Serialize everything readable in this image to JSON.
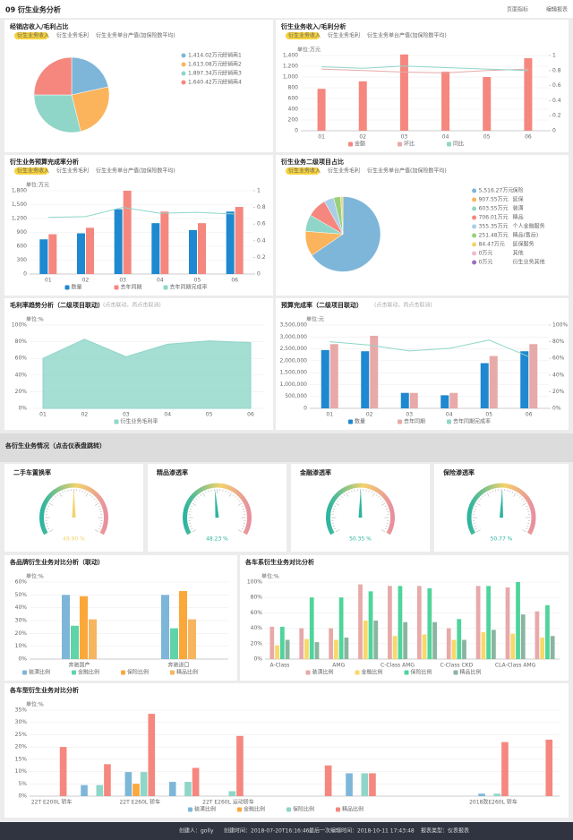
{
  "header": {
    "title": "09 衍生业务分析",
    "actions": [
      "页面指标",
      "编辑报表"
    ]
  },
  "section_title": "各衍生业务情况（点击仪表盘跳转）",
  "footer": [
    "创建人：golly",
    "创建时间：2018-07-20T16:16:46",
    "最后一次编辑时间：2018-10-11 17:43:48",
    "报表类型：仪表报表"
  ],
  "chart_data": [
    {
      "type": "pie",
      "title": "经销店收入/毛利占比",
      "tabs": [
        "衍生业务收入",
        "衍生业务毛利",
        "衍生业务单台产值(加保险数平均)"
      ],
      "labels": [
        "经销商1",
        "经销商2",
        "经销商3",
        "经销商4"
      ],
      "values": [
        1414.02,
        1613.08,
        1897.34,
        1640.42
      ],
      "value_labels": [
        "1,414.02万元",
        "1,613.08万元",
        "1,897.34万元",
        "1,640.42万元"
      ],
      "colors": [
        "#7eb6d9",
        "#fbb45c",
        "#8fd6c8",
        "#f5877f"
      ]
    },
    {
      "type": "bar",
      "title": "衍生业务收入/毛利分析",
      "tabs": [
        "衍生业务收入",
        "衍生业务毛利",
        "衍生业务单台产值(加保险数平均)"
      ],
      "unit": "单位:万元",
      "categories": [
        "01",
        "02",
        "03",
        "04",
        "05",
        "06"
      ],
      "ylim": [
        0,
        1400
      ],
      "yticks": [
        0,
        200,
        400,
        600,
        800,
        {
          "value": 1000,
          "label": "1,000"
        },
        {
          "value": 1200,
          "label": "1,200"
        },
        {
          "value": 1400,
          "label": "1,400"
        }
      ],
      "y2lim": [
        0,
        1
      ],
      "y2ticks": [
        0,
        0.2,
        0.4,
        0.6,
        0.8,
        1
      ],
      "series": [
        {
          "name": "金额",
          "color": "#f5877f",
          "type": "bar",
          "values": [
            780,
            920,
            1420,
            1100,
            1000,
            1350
          ]
        },
        {
          "name": "环比",
          "color": "#e8a9a9",
          "type": "line",
          "axis": "y2",
          "values": [
            0.82,
            0.8,
            0.78,
            0.77,
            0.8,
            0.82
          ]
        },
        {
          "name": "同比",
          "color": "#8fd6c8",
          "type": "line",
          "axis": "y2",
          "values": [
            0.85,
            0.83,
            0.86,
            0.84,
            0.82,
            0.8
          ]
        }
      ]
    },
    {
      "type": "bar",
      "title": "衍生业务预算完成率分析",
      "tabs": [
        "衍生业务收入",
        "衍生业务毛利",
        "衍生业务单台产值(加保险数平均)"
      ],
      "unit": "单位:万元",
      "categories": [
        "01",
        "02",
        "03",
        "04",
        "05",
        "06"
      ],
      "ylim": [
        0,
        1800
      ],
      "yticks": [
        0,
        300,
        600,
        900,
        {
          "value": 1200,
          "label": "1,200"
        },
        {
          "value": 1500,
          "label": "1,500"
        },
        {
          "value": 1800,
          "label": "1,800"
        }
      ],
      "y2lim": [
        0,
        1
      ],
      "y2ticks": [
        0,
        0.2,
        0.4,
        0.6,
        0.8,
        1
      ],
      "series": [
        {
          "name": "数量",
          "color": "#1e88d0",
          "type": "bar",
          "values": [
            750,
            880,
            1400,
            1100,
            950,
            1350
          ]
        },
        {
          "name": "去年同期",
          "color": "#f5877f",
          "type": "bar",
          "values": [
            860,
            1000,
            1800,
            1350,
            1100,
            1450
          ]
        },
        {
          "name": "去年同期完成率",
          "color": "#8fd6c8",
          "type": "line",
          "axis": "y2",
          "values": [
            0.68,
            0.69,
            0.8,
            0.73,
            0.74,
            0.72
          ]
        }
      ]
    },
    {
      "type": "pie",
      "title": "衍生业务二级项目占比",
      "tabs": [
        "衍生业务收入",
        "衍生业务毛利",
        "衍生业务单台产值(加保险数平均)"
      ],
      "labels": [
        "保险",
        "延保",
        "装潢",
        "精品",
        "个人金融服务",
        "精品(售后)",
        "延保服务",
        "其他",
        "衍生业务其他"
      ],
      "values": [
        5516.27,
        907.55,
        603.55,
        706.01,
        355.35,
        251.48,
        84.47,
        0,
        0
      ],
      "value_labels": [
        "5,516.27万元",
        "907.55万元",
        "603.55万元",
        "706.01万元",
        "355.35万元",
        "251.48万元",
        "84.47万元",
        "0万元",
        "0万元"
      ],
      "colors": [
        "#7eb6d9",
        "#fbb45c",
        "#8fd6c8",
        "#f5877f",
        "#a9cfe8",
        "#9ad07a",
        "#f3d36b",
        "#f3b8c8",
        "#9b6fc3"
      ]
    },
    {
      "type": "area",
      "title": "毛利率趋势分析（二级项目联动）",
      "subtitle": "(点击联动，再点击取消)",
      "unit": "单位:%",
      "categories": [
        "01",
        "02",
        "03",
        "04",
        "05",
        "06"
      ],
      "ylim": [
        0,
        100
      ],
      "yticks": [
        {
          "value": 0,
          "label": "0%"
        },
        {
          "value": 20,
          "label": "20%"
        },
        {
          "value": 40,
          "label": "40%"
        },
        {
          "value": 60,
          "label": "60%"
        },
        {
          "value": 80,
          "label": "80%"
        },
        {
          "value": 100,
          "label": "100%"
        }
      ],
      "series": [
        {
          "name": "衍生业务毛利率",
          "color": "#8fd6c8",
          "values": [
            60,
            83,
            62,
            77,
            81,
            79
          ]
        }
      ]
    },
    {
      "type": "bar",
      "title": "预算完成率（二级项目联动）",
      "subtitle": "(点击联动，再点击取消)",
      "unit": "单位:元",
      "categories": [
        "01",
        "02",
        "03",
        "04",
        "05",
        "06"
      ],
      "ylim": [
        0,
        3500000
      ],
      "yticks": [
        0,
        {
          "value": 500000,
          "label": "500,000"
        },
        {
          "value": 1000000,
          "label": "1,000,000"
        },
        {
          "value": 1500000,
          "label": "1,500,000"
        },
        {
          "value": 2000000,
          "label": "2,000,000"
        },
        {
          "value": 2500000,
          "label": "2,500,000"
        },
        {
          "value": 3000000,
          "label": "3,000,000"
        },
        {
          "value": 3500000,
          "label": "3,500,000"
        }
      ],
      "y2lim": [
        0,
        100
      ],
      "y2ticks": [
        {
          "value": 0,
          "label": "0%"
        },
        {
          "value": 20,
          "label": "20%"
        },
        {
          "value": 40,
          "label": "40%"
        },
        {
          "value": 60,
          "label": "60%"
        },
        {
          "value": 80,
          "label": "80%"
        },
        {
          "value": 100,
          "label": "100%"
        }
      ],
      "series": [
        {
          "name": "数量",
          "color": "#1e88d0",
          "type": "bar",
          "values": [
            2450000,
            2400000,
            650000,
            550000,
            1900000,
            2400000
          ]
        },
        {
          "name": "去年同期",
          "color": "#e8a9a9",
          "type": "bar",
          "values": [
            2700000,
            3050000,
            650000,
            650000,
            2200000,
            2700000
          ]
        },
        {
          "name": "去年同期完成率",
          "color": "#8fd6c8",
          "type": "line",
          "axis": "y2",
          "values": [
            80,
            76,
            69,
            72,
            82,
            62
          ]
        }
      ]
    },
    {
      "type": "gauge",
      "title": "二手车置换率",
      "ylim": [
        0,
        100
      ],
      "value": 49.9,
      "value_label": "49.90 %",
      "color": "#f3d36b"
    },
    {
      "type": "gauge",
      "title": "精品渗透率",
      "ylim": [
        0,
        100
      ],
      "value": 48.23,
      "value_label": "48.23 %",
      "color": "#2bb5a0"
    },
    {
      "type": "gauge",
      "title": "金融渗透率",
      "ylim": [
        0,
        100
      ],
      "value": 50.35,
      "value_label": "50.35 %",
      "color": "#2bb5a0"
    },
    {
      "type": "gauge",
      "title": "保险渗透率",
      "ylim": [
        0,
        100
      ],
      "value": 50.77,
      "value_label": "50.77 %",
      "color": "#2bb5a0"
    },
    {
      "type": "bar",
      "title": "各品牌衍生业务对比分析（联动）",
      "unit": "单位:%",
      "categories": [
        "奔驰国产",
        "奔驰进口"
      ],
      "ylim": [
        0,
        60
      ],
      "yticks": [
        {
          "value": 0,
          "label": "0%"
        },
        {
          "value": 10,
          "label": "10%"
        },
        {
          "value": 20,
          "label": "20%"
        },
        {
          "value": 30,
          "label": "30%"
        },
        {
          "value": 40,
          "label": "40%"
        },
        {
          "value": 50,
          "label": "50%"
        },
        {
          "value": 60,
          "label": "60%"
        }
      ],
      "series": [
        {
          "name": "装潢比例",
          "color": "#7eb6d9",
          "type": "bar",
          "values": [
            50,
            50
          ]
        },
        {
          "name": "金融比例",
          "color": "#5fd4a8",
          "type": "bar",
          "values": [
            26,
            24
          ]
        },
        {
          "name": "保险比例",
          "color": "#fba73a",
          "type": "bar",
          "values": [
            49,
            53
          ]
        },
        {
          "name": "精品比例",
          "color": "#f7b560",
          "type": "bar",
          "values": [
            31,
            31
          ]
        }
      ]
    },
    {
      "type": "bar",
      "title": "各车系衍生业务对比分析",
      "unit": "单位:%",
      "categories": [
        "A-Class",
        null,
        "AMG",
        null,
        "C-Class AMG",
        null,
        "C-Class CKD",
        null,
        "CLA-Class AMG",
        null
      ],
      "ylim": [
        0,
        100
      ],
      "yticks": [
        {
          "value": 0,
          "label": "0%"
        },
        {
          "value": 20,
          "label": "20%"
        },
        {
          "value": 40,
          "label": "40%"
        },
        {
          "value": 60,
          "label": "60%"
        },
        {
          "value": 80,
          "label": "80%"
        },
        {
          "value": 100,
          "label": "100%"
        }
      ],
      "series": [
        {
          "name": "装潢比例",
          "color": "#e8a9a9",
          "type": "bar",
          "values": [
            42,
            40,
            40,
            97,
            95,
            95,
            40,
            95,
            93,
            62
          ]
        },
        {
          "name": "金融比例",
          "color": "#f7d86b",
          "type": "bar",
          "values": [
            18,
            26,
            25,
            50,
            30,
            32,
            25,
            35,
            33,
            28
          ]
        },
        {
          "name": "保险比例",
          "color": "#4fd49b",
          "type": "bar",
          "values": [
            42,
            80,
            80,
            88,
            95,
            92,
            52,
            95,
            100,
            70
          ]
        },
        {
          "name": "精品比例",
          "color": "#8ab5a0",
          "type": "bar",
          "values": [
            25,
            22,
            28,
            50,
            48,
            48,
            25,
            38,
            58,
            30
          ]
        }
      ]
    },
    {
      "type": "bar",
      "title": "各车型衍生业务对比分析",
      "unit": "单位:%",
      "categories": [
        "22T E200L 轿车",
        null,
        "22T E260L 轿车",
        null,
        "22T E260L 运动轿车",
        null,
        null,
        null,
        null,
        null,
        "2018款E260L 轿车",
        null
      ],
      "ylim": [
        0,
        35
      ],
      "yticks": [
        {
          "value": 0,
          "label": "0%"
        },
        {
          "value": 5,
          "label": "5%"
        },
        {
          "value": 10,
          "label": "10%"
        },
        {
          "value": 15,
          "label": "15%"
        },
        {
          "value": 20,
          "label": "20%"
        },
        {
          "value": 25,
          "label": "25%"
        },
        {
          "value": 30,
          "label": "30%"
        },
        {
          "value": 35,
          "label": "35%"
        }
      ],
      "series": [
        {
          "name": "装潢比例",
          "color": "#7eb6d9",
          "type": "bar",
          "values": [
            0,
            4.5,
            9.8,
            5.8,
            0,
            0,
            0,
            9.3,
            0,
            0,
            1,
            0
          ]
        },
        {
          "name": "金融比例",
          "color": "#fba73a",
          "type": "bar",
          "values": [
            0,
            0,
            5,
            0,
            0,
            0,
            0,
            0,
            0,
            0,
            0,
            0
          ]
        },
        {
          "name": "保险比例",
          "color": "#8fd6c8",
          "type": "bar",
          "values": [
            0,
            4.5,
            9.8,
            5.8,
            2,
            0,
            0,
            9.3,
            0,
            0,
            1,
            0
          ]
        },
        {
          "name": "精品比例",
          "color": "#f5877f",
          "type": "bar",
          "values": [
            20,
            13,
            33.5,
            11.5,
            24.5,
            0,
            12.5,
            9.3,
            0,
            0,
            22,
            23
          ]
        }
      ]
    }
  ]
}
